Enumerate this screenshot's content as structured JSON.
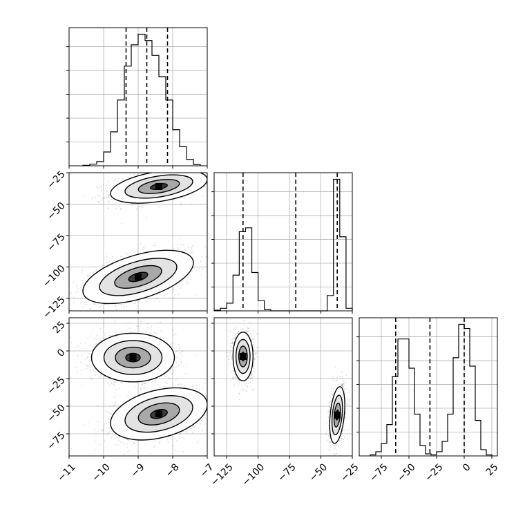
{
  "chart_data": {
    "type": "corner",
    "parameters": [
      {
        "range": [
          -11,
          -7
        ],
        "ticks": [
          -11,
          -10,
          -9,
          -8,
          -7
        ],
        "ticklabels": [
          "−11",
          "−10",
          "−9",
          "−8",
          "−7"
        ]
      },
      {
        "range": [
          -135,
          -25
        ],
        "ticks": [
          -125,
          -100,
          -75,
          -50,
          -25
        ],
        "ticklabels": [
          "−125",
          "−100",
          "−75",
          "−50",
          "−25"
        ]
      },
      {
        "range": [
          -95,
          30
        ],
        "ticks": [
          -75,
          -50,
          -25,
          0,
          25
        ],
        "ticklabels": [
          "−75",
          "−50",
          "−25",
          "0",
          "25"
        ]
      }
    ],
    "panels": [
      {
        "id": "hist-0",
        "type": "histogram",
        "param": 0,
        "bin_edges": [
          -10.6,
          -10.4,
          -10.2,
          -10.0,
          -9.8,
          -9.6,
          -9.4,
          -9.2,
          -9.0,
          -8.8,
          -8.6,
          -8.4,
          -8.2,
          -8.0,
          -7.8,
          -7.6,
          -7.4,
          -7.2
        ],
        "counts": [
          0.2,
          0.8,
          2,
          6.5,
          16,
          31,
          47,
          57,
          62,
          59,
          52,
          42,
          31,
          17,
          9,
          3,
          0.6
        ],
        "quantiles": [
          -9.35,
          -8.75,
          -8.15
        ]
      },
      {
        "id": "hist-1",
        "type": "histogram",
        "param": 1,
        "bin_edges": [
          -135,
          -130,
          -125,
          -120,
          -115,
          -110,
          -105,
          -100,
          -95,
          -90,
          -45,
          -40,
          -35,
          -30,
          -25
        ],
        "counts": [
          0.5,
          2,
          6,
          28,
          62,
          65,
          30,
          8,
          1,
          0,
          12,
          103,
          58,
          2
        ],
        "quantiles": [
          -112,
          -70,
          -37
        ]
      },
      {
        "id": "hist-2",
        "type": "histogram",
        "param": 2,
        "bin_edges": [
          -85,
          -80,
          -75,
          -70,
          -65,
          -60,
          -55,
          -50,
          -45,
          -40,
          -35,
          -30,
          -25,
          -20,
          -15,
          -10,
          -5,
          0,
          5,
          10,
          15,
          20,
          25
        ],
        "counts": [
          0.5,
          2,
          6,
          15,
          38,
          56,
          56,
          42,
          20,
          5,
          1,
          0.5,
          2,
          7,
          20,
          47,
          63,
          61,
          43,
          17,
          3,
          0.5
        ],
        "quantiles": [
          -62,
          -31,
          0
        ]
      },
      {
        "id": "scatter-1-0",
        "type": "density2d",
        "xparam": 0,
        "yparam": 1,
        "modes": [
          {
            "center": [
              -8.4,
              -36
            ],
            "spread": [
              0.7,
              6
            ],
            "slope": 4,
            "weight": 0.5
          },
          {
            "center": [
              -9.0,
              -108
            ],
            "spread": [
              0.8,
              9
            ],
            "slope": 7,
            "weight": 0.5
          }
        ]
      },
      {
        "id": "scatter-2-0",
        "type": "density2d",
        "xparam": 0,
        "yparam": 2,
        "modes": [
          {
            "center": [
              -9.15,
              -6
            ],
            "spread": [
              0.6,
              11
            ],
            "slope": 0,
            "weight": 0.5
          },
          {
            "center": [
              -8.4,
              -57
            ],
            "spread": [
              0.7,
              11
            ],
            "slope": 6,
            "weight": 0.5
          }
        ]
      },
      {
        "id": "scatter-2-1",
        "type": "density2d",
        "xparam": 1,
        "yparam": 2,
        "modes": [
          {
            "center": [
              -112,
              -5
            ],
            "spread": [
              4,
              11
            ],
            "slope": 0,
            "weight": 0.5
          },
          {
            "center": [
              -37,
              -58
            ],
            "spread": [
              3,
              12
            ],
            "slope": 1.5,
            "weight": 0.5
          }
        ]
      }
    ]
  }
}
